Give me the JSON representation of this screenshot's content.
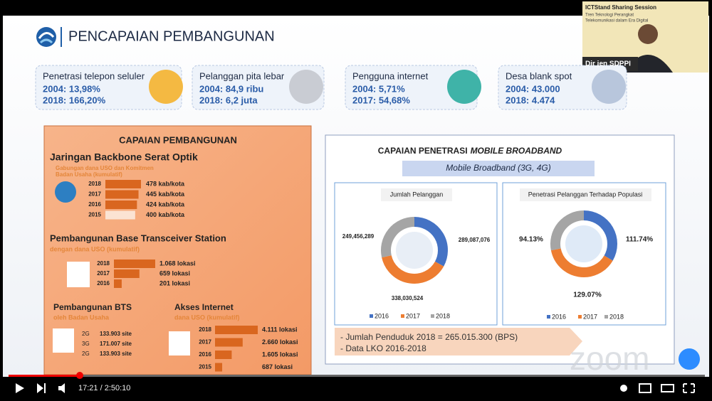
{
  "slide": {
    "title": "PENCAPAIAN PEMBANGUNAN",
    "cards": [
      {
        "title": "Penetrasi telepon seluler",
        "lines": [
          "2004:   13,98%",
          "2018: 166,20%"
        ]
      },
      {
        "title": "Pelanggan pita lebar",
        "lines": [
          "2004: 84,9 ribu",
          "2018: 6,2 juta"
        ]
      },
      {
        "title": "Pengguna internet",
        "lines": [
          "2004:   5,71%",
          "2017: 54,68%"
        ]
      },
      {
        "title": "Desa blank spot",
        "lines": [
          "2004: 43.000",
          "2018:   4.474"
        ]
      }
    ],
    "left_panel": {
      "title": "CAPAIAN PEMBANGUNAN",
      "backbone": {
        "title": "Jaringan Backbone Serat Optik",
        "subtitle": [
          "Gabungan dana USO dan Komitmen",
          "Badan Usaha (kumulatif)"
        ],
        "bars": [
          {
            "year": "2018",
            "value": 478,
            "label": "478 kab/kota"
          },
          {
            "year": "2017",
            "value": 445,
            "label": "445 kab/kota"
          },
          {
            "year": "2016",
            "value": 424,
            "label": "424 kab/kota"
          },
          {
            "year": "2015",
            "value": 400,
            "label": "400 kab/kota"
          }
        ]
      },
      "bts": {
        "title": "Pembangunan Base Transceiver Station",
        "subtitle": "dengan dana USO (kumulatif)",
        "bars": [
          {
            "year": "2018",
            "value": 1068,
            "label": "1.068 lokasi"
          },
          {
            "year": "2017",
            "value": 659,
            "label": "659 lokasi"
          },
          {
            "year": "2016",
            "value": 201,
            "label": "201 lokasi"
          }
        ]
      },
      "bts_private": {
        "title": "Pembangunan BTS",
        "subtitle": "oleh Badan Usaha",
        "rows": [
          {
            "gen": "2G",
            "label": "133.903 site"
          },
          {
            "gen": "3G",
            "label": "171.007 site"
          },
          {
            "gen": "2G",
            "label": "133.903 site"
          }
        ]
      },
      "internet": {
        "title": "Akses Internet",
        "subtitle": "dana USO (kumulatif)",
        "bars": [
          {
            "year": "2018",
            "value": 4111,
            "label": "4.111 lokasi"
          },
          {
            "year": "2017",
            "value": 2660,
            "label": "2.660 lokasi"
          },
          {
            "year": "2016",
            "value": 1605,
            "label": "1.605 lokasi"
          },
          {
            "year": "2015",
            "value": 687,
            "label": "687 lokasi"
          }
        ]
      }
    },
    "right_panel": {
      "title": "CAPAIAN PENETRASI",
      "title_em": "MOBILE BROADBAND",
      "subtitle": "Mobile Broadband (3G, 4G)",
      "legend": [
        "2016",
        "2017",
        "2018"
      ],
      "colors": [
        "#4472c4",
        "#ed7d31",
        "#a5a5a5"
      ],
      "subscribers": {
        "title": "Jumlah Pelanggan",
        "values": [
          289087076,
          338030524,
          249456289
        ],
        "value_labels": [
          "289,087,076",
          "338,030,524",
          "249,456,289"
        ]
      },
      "penetration": {
        "title": "Penetrasi Pelanggan Terhadap Populasi",
        "values": [
          111.74,
          129.07,
          94.13
        ],
        "value_labels": [
          "111.74%",
          "129.07%",
          "94.13%"
        ]
      },
      "notes": [
        "- Jumlah Penduduk 2018 =  265.015.300 (BPS)",
        "- Data LKO 2016-2018"
      ]
    }
  },
  "webcam": {
    "title": "ICTStand Sharing Session",
    "subtitle": [
      "Tren Teknologi Perangkat",
      "Telekomunikasi dalam Era Digital"
    ],
    "name": "Dir jen SDPPI"
  },
  "player": {
    "time": "17:21 / 2:50:10"
  },
  "watermark": "zoom"
}
